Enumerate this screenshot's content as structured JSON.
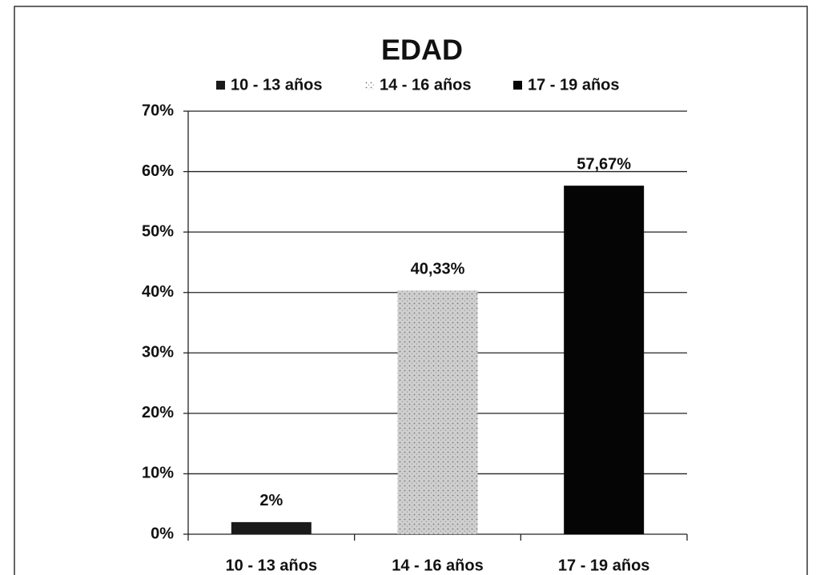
{
  "chart_data": {
    "type": "bar",
    "title": "EDAD",
    "categories": [
      "10 - 13 años",
      "14 - 16 años",
      "17 - 19 años"
    ],
    "values": [
      2,
      40.33,
      57.67
    ],
    "value_labels": [
      "2%",
      "40,33%",
      "57,67%"
    ],
    "colors": [
      "#1a1a1a",
      "#cfcfcf",
      "#050505"
    ],
    "ylim": [
      0,
      70
    ],
    "yticks": [
      {
        "value": 0,
        "label": "0%"
      },
      {
        "value": 10,
        "label": "10%"
      },
      {
        "value": 20,
        "label": "20%"
      },
      {
        "value": 30,
        "label": "30%"
      },
      {
        "value": 40,
        "label": "40%"
      },
      {
        "value": 50,
        "label": "50%"
      },
      {
        "value": 60,
        "label": "60%"
      },
      {
        "value": 70,
        "label": "70%"
      }
    ],
    "grid": true,
    "legend": "top"
  }
}
